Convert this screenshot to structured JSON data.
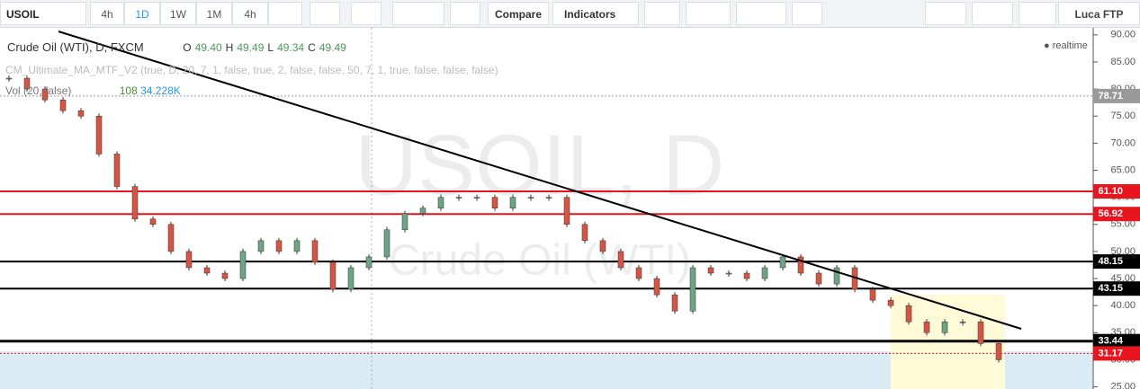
{
  "toolbar": {
    "symbol": "USOIL",
    "intervals": [
      "4h",
      "1D",
      "1W",
      "1M",
      "4h"
    ],
    "compare": "Compare",
    "indicators": "Indicators",
    "user": "Luca FTP"
  },
  "legend": {
    "title": "Crude Oil (WTI), D, FXCM",
    "ohlc": [
      {
        "key": "O",
        "value": "49.40"
      },
      {
        "key": "H",
        "value": "49.49"
      },
      {
        "key": "L",
        "value": "49.34"
      },
      {
        "key": "C",
        "value": "49.49"
      }
    ],
    "indicator": "CM_Ultimate_MA_MTF_V2 (true, D, 20, 7, 1, false, true, 2, false, false, 50, 7, 1, true, false, false, false)",
    "volume": "Vol (20, false)",
    "volume_value": "108",
    "volume_ma": "34.228K",
    "status": "realtime"
  },
  "watermark": {
    "symbol": "USOIL, D",
    "name": "Crude Oil (WTI)"
  },
  "chart_data": {
    "type": "candlestick",
    "closes": [
      82,
      80,
      78,
      76,
      75,
      68,
      62,
      56,
      55,
      50,
      47,
      46,
      45,
      50,
      52,
      50,
      52,
      48,
      43,
      47,
      49,
      54,
      57,
      58,
      60,
      60,
      60,
      58,
      60,
      60,
      60,
      55,
      52,
      50,
      47,
      45,
      42,
      39,
      47,
      46,
      46,
      45,
      47,
      49,
      46,
      44,
      47,
      43,
      41,
      40,
      37,
      35,
      37,
      37,
      33,
      30
    ],
    "ylim": [
      24.6,
      91.3
    ],
    "yticks": [
      {
        "value": 25,
        "label": "25.00"
      },
      {
        "value": 30,
        "label": "30.00"
      },
      {
        "value": 35,
        "label": "35.00"
      },
      {
        "value": 40,
        "label": "40.00"
      },
      {
        "value": 45,
        "label": "45.00"
      },
      {
        "value": 50,
        "label": "50.00"
      },
      {
        "value": 55,
        "label": "55.00"
      },
      {
        "value": 60,
        "label": "60.00"
      },
      {
        "value": 65,
        "label": "65.00"
      },
      {
        "value": 70,
        "label": "70.00"
      },
      {
        "value": 75,
        "label": "75.00"
      },
      {
        "value": 80,
        "label": "80.00"
      },
      {
        "value": 85,
        "label": "85.00"
      },
      {
        "value": 90,
        "label": "90.00"
      }
    ],
    "levels": [
      {
        "value": 78.71,
        "label": "78.71",
        "color": "#999999"
      },
      {
        "value": 61.1,
        "label": "61.10",
        "color": "#e8141e"
      },
      {
        "value": 56.92,
        "label": "56.92",
        "color": "#e8141e"
      },
      {
        "value": 48.15,
        "label": "48.15",
        "color": "#000000"
      },
      {
        "value": 43.15,
        "label": "43.15",
        "color": "#000000"
      },
      {
        "value": 33.44,
        "label": "33.44",
        "color": "#000000"
      },
      {
        "value": 31.17,
        "label": "31.17",
        "color": "#e8141e"
      }
    ],
    "up_color": "#6ba583",
    "down_color": "#d75442"
  }
}
